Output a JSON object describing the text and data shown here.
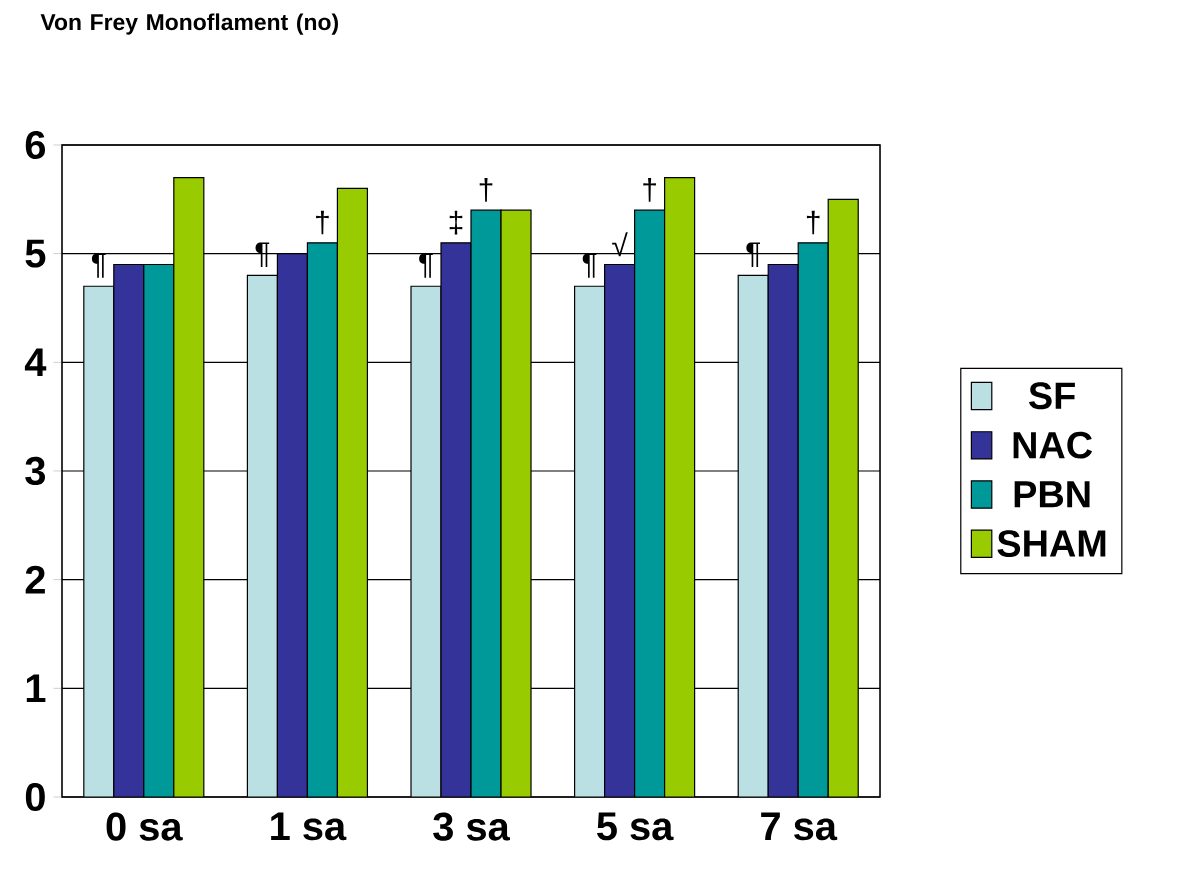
{
  "chart_data": {
    "type": "bar",
    "ylabel": "Von Frey Monoflament (no)",
    "categories": [
      "0 sa",
      "1 sa",
      "3 sa",
      "5 sa",
      "7 sa"
    ],
    "series": [
      {
        "name": "SF",
        "color": "#bbe0e3",
        "values": [
          4.7,
          4.8,
          4.7,
          4.7,
          4.8
        ]
      },
      {
        "name": "NAC",
        "color": "#333399",
        "values": [
          4.9,
          5.0,
          5.1,
          4.9,
          4.9
        ]
      },
      {
        "name": "PBN",
        "color": "#009999",
        "values": [
          4.9,
          5.1,
          5.4,
          5.4,
          5.1
        ]
      },
      {
        "name": "SHAM",
        "color": "#99cc00",
        "values": [
          5.7,
          5.6,
          5.4,
          5.7,
          5.5
        ]
      }
    ],
    "ylim": [
      0,
      6
    ],
    "yticks": [
      0,
      1,
      2,
      3,
      4,
      5,
      6
    ],
    "grid": "y",
    "legend": "right",
    "annotations": [
      {
        "text": "¶",
        "x": "0 sa",
        "y": 4.7
      },
      {
        "text": "¶",
        "x": "1 sa",
        "y": 4.8
      },
      {
        "text": "†",
        "x": "1 sa",
        "y": 5.1
      },
      {
        "text": "¶",
        "x": "3 sa",
        "y": 4.7
      },
      {
        "text": "‡",
        "x": "3 sa",
        "y": 5.1
      },
      {
        "text": "†",
        "x": "3 sa",
        "y": 5.4
      },
      {
        "text": "¶",
        "x": "5 sa",
        "y": 4.7
      },
      {
        "text": "√",
        "x": "5 sa",
        "y": 4.9
      },
      {
        "text": "†",
        "x": "5 sa",
        "y": 5.4
      },
      {
        "text": "¶",
        "x": "7 sa",
        "y": 4.8
      },
      {
        "text": "†",
        "x": "7 sa",
        "y": 5.1
      }
    ]
  }
}
